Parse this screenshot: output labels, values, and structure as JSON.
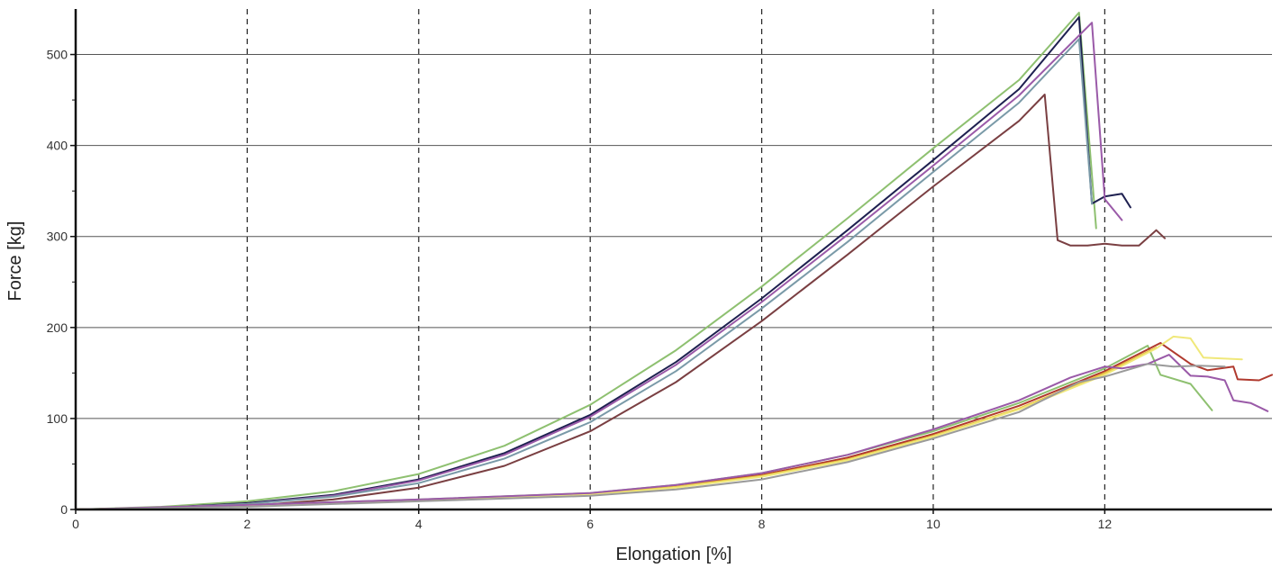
{
  "chart_data": {
    "type": "line",
    "title": "",
    "xlabel": "Elongation [%]",
    "ylabel": "Force [kg]",
    "xlim": [
      0,
      13.95
    ],
    "ylim": [
      0,
      550
    ],
    "x_ticks": [
      0,
      2,
      4,
      6,
      8,
      10,
      12
    ],
    "x_tick_labels": [
      "0",
      "2",
      "4",
      "6",
      "8",
      "10",
      "12"
    ],
    "y_ticks": [
      0,
      100,
      200,
      300,
      400,
      500
    ],
    "y_tick_labels": [
      "0",
      "100",
      "200",
      "300",
      "400",
      "500"
    ],
    "y_minor_ticks": [
      50,
      150,
      250,
      350,
      450
    ],
    "grid": {
      "x": "dashed-vertical",
      "y": "solid-horizontal"
    },
    "legend": "none",
    "series": [
      {
        "color": "#8ec070",
        "points": [
          [
            0,
            0
          ],
          [
            1,
            3
          ],
          [
            2,
            9
          ],
          [
            3,
            20
          ],
          [
            4,
            39
          ],
          [
            5,
            70
          ],
          [
            6,
            115
          ],
          [
            7,
            175
          ],
          [
            8,
            245
          ],
          [
            9,
            320
          ],
          [
            10,
            397
          ],
          [
            11,
            472
          ],
          [
            11.7,
            546
          ],
          [
            11.9,
            309
          ]
        ]
      },
      {
        "color": "#1e2050",
        "points": [
          [
            0,
            0
          ],
          [
            1,
            2
          ],
          [
            2,
            7
          ],
          [
            3,
            16
          ],
          [
            4,
            33
          ],
          [
            5,
            62
          ],
          [
            6,
            104
          ],
          [
            7,
            162
          ],
          [
            8,
            232
          ],
          [
            9,
            307
          ],
          [
            10,
            384
          ],
          [
            11,
            462
          ],
          [
            11.7,
            541
          ],
          [
            11.85,
            336
          ],
          [
            12,
            344
          ],
          [
            12.2,
            347
          ],
          [
            12.3,
            332
          ]
        ]
      },
      {
        "color": "#9a5aa8",
        "points": [
          [
            0,
            0
          ],
          [
            1,
            2
          ],
          [
            2,
            6
          ],
          [
            3,
            15
          ],
          [
            4,
            32
          ],
          [
            5,
            60
          ],
          [
            6,
            102
          ],
          [
            7,
            159
          ],
          [
            8,
            228
          ],
          [
            9,
            302
          ],
          [
            10,
            378
          ],
          [
            11,
            455
          ],
          [
            11.85,
            535
          ],
          [
            12,
            341
          ],
          [
            12.2,
            318
          ]
        ]
      },
      {
        "color": "#7a9aa8",
        "points": [
          [
            0,
            0
          ],
          [
            1,
            2
          ],
          [
            2,
            6
          ],
          [
            3,
            14
          ],
          [
            4,
            29
          ],
          [
            5,
            56
          ],
          [
            6,
            96
          ],
          [
            7,
            152
          ],
          [
            8,
            221
          ],
          [
            9,
            294
          ],
          [
            10,
            371
          ],
          [
            11,
            447
          ],
          [
            11.7,
            517
          ],
          [
            11.85,
            336
          ]
        ]
      },
      {
        "color": "#7a3f42",
        "points": [
          [
            0,
            0
          ],
          [
            1,
            1
          ],
          [
            2,
            4
          ],
          [
            3,
            11
          ],
          [
            4,
            24
          ],
          [
            5,
            48
          ],
          [
            6,
            86
          ],
          [
            7,
            140
          ],
          [
            8,
            207
          ],
          [
            9,
            280
          ],
          [
            10,
            355
          ],
          [
            11,
            427
          ],
          [
            11.3,
            456
          ],
          [
            11.45,
            296
          ],
          [
            11.6,
            290
          ],
          [
            11.8,
            290
          ],
          [
            12,
            292
          ],
          [
            12.2,
            290
          ],
          [
            12.4,
            290
          ],
          [
            12.6,
            307
          ],
          [
            12.7,
            298
          ]
        ]
      },
      {
        "color": "#8ec070",
        "points": [
          [
            0,
            0
          ],
          [
            2,
            5
          ],
          [
            4,
            11
          ],
          [
            6,
            18
          ],
          [
            7,
            27
          ],
          [
            8,
            40
          ],
          [
            9,
            60
          ],
          [
            10,
            86
          ],
          [
            11,
            117
          ],
          [
            12,
            155
          ],
          [
            12.5,
            180
          ],
          [
            12.65,
            148
          ],
          [
            13,
            138
          ],
          [
            13.25,
            109
          ]
        ]
      },
      {
        "color": "#b03a2e",
        "points": [
          [
            0,
            0
          ],
          [
            2,
            4
          ],
          [
            4,
            10
          ],
          [
            6,
            17
          ],
          [
            7,
            26
          ],
          [
            8,
            38
          ],
          [
            9,
            57
          ],
          [
            10,
            83
          ],
          [
            11,
            114
          ],
          [
            12,
            152
          ],
          [
            12.65,
            183
          ],
          [
            13,
            160
          ],
          [
            13.2,
            153
          ],
          [
            13.5,
            157
          ],
          [
            13.55,
            143
          ],
          [
            13.8,
            142
          ],
          [
            13.95,
            148
          ]
        ]
      },
      {
        "color": "#e8c040",
        "points": [
          [
            0,
            0
          ],
          [
            2,
            4
          ],
          [
            4,
            10
          ],
          [
            6,
            17
          ],
          [
            7,
            25
          ],
          [
            8,
            37
          ],
          [
            9,
            55
          ],
          [
            10,
            81
          ],
          [
            11,
            111
          ],
          [
            12,
            150
          ],
          [
            12.6,
            178
          ]
        ]
      },
      {
        "color": "#f0e87a",
        "points": [
          [
            0,
            0
          ],
          [
            2,
            4
          ],
          [
            4,
            10
          ],
          [
            6,
            16
          ],
          [
            7,
            24
          ],
          [
            8,
            36
          ],
          [
            9,
            54
          ],
          [
            10,
            80
          ],
          [
            11,
            110
          ],
          [
            12,
            148
          ],
          [
            12.6,
            177
          ],
          [
            12.8,
            190
          ],
          [
            13,
            188
          ],
          [
            13.15,
            167
          ],
          [
            13.6,
            165
          ]
        ]
      },
      {
        "color": "#9a5aa8",
        "points": [
          [
            0,
            0
          ],
          [
            2,
            5
          ],
          [
            4,
            11
          ],
          [
            6,
            18
          ],
          [
            7,
            27
          ],
          [
            8,
            40
          ],
          [
            9,
            60
          ],
          [
            10,
            88
          ],
          [
            11,
            120
          ],
          [
            11.6,
            145
          ],
          [
            12,
            157
          ],
          [
            12.2,
            155
          ],
          [
            12.5,
            160
          ],
          [
            12.75,
            170
          ],
          [
            13,
            147
          ],
          [
            13.2,
            146
          ],
          [
            13.4,
            142
          ],
          [
            13.5,
            120
          ],
          [
            13.7,
            117
          ],
          [
            13.9,
            108
          ]
        ]
      },
      {
        "color": "#9a9a9a",
        "points": [
          [
            0,
            0
          ],
          [
            2,
            3
          ],
          [
            4,
            9
          ],
          [
            6,
            15
          ],
          [
            7,
            22
          ],
          [
            8,
            33
          ],
          [
            9,
            52
          ],
          [
            10,
            78
          ],
          [
            11,
            107
          ],
          [
            11.7,
            140
          ],
          [
            12,
            146
          ],
          [
            12.5,
            160
          ],
          [
            12.8,
            157
          ],
          [
            13.1,
            158
          ],
          [
            13.4,
            157
          ]
        ]
      }
    ]
  }
}
